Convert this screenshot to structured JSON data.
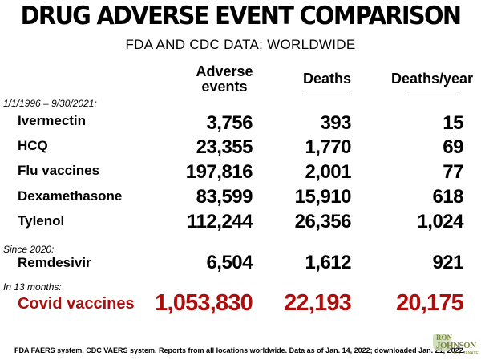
{
  "title": "DRUG ADVERSE EVENT COMPARISON",
  "subtitle": "FDA AND CDC DATA: WORLDWIDE",
  "columns": {
    "adverse_line1": "Adverse",
    "adverse_line2": "events",
    "deaths": "Deaths",
    "deaths_per_year": "Deaths/year"
  },
  "sections": {
    "period1": "1/1/1996 – 9/30/2021:",
    "period2": "Since 2020:",
    "period3": "In 13 months:"
  },
  "rows": [
    {
      "label": "Ivermectin",
      "adverse": "3,756",
      "deaths": "393",
      "per_year": "15"
    },
    {
      "label": "HCQ",
      "adverse": "23,355",
      "deaths": "1,770",
      "per_year": "69"
    },
    {
      "label": "Flu vaccines",
      "adverse": "197,816",
      "deaths": "2,001",
      "per_year": "77"
    },
    {
      "label": "Dexamethasone",
      "adverse": "83,599",
      "deaths": "15,910",
      "per_year": "618"
    },
    {
      "label": "Tylenol",
      "adverse": "112,244",
      "deaths": "26,356",
      "per_year": "1,024"
    },
    {
      "label": "Remdesivir",
      "adverse": "6,504",
      "deaths": "1,612",
      "per_year": "921"
    },
    {
      "label": "Covid vaccines",
      "adverse": "1,053,830",
      "deaths": "22,193",
      "per_year": "20,175"
    }
  ],
  "footer": "FDA FAERS system, CDC VAERS system. Reports from all locations worldwide. Data as of Jan. 14, 2022; downloaded Jan. 21, 2022.",
  "logo": {
    "line1": "RON",
    "line2": "JOHNSON",
    "line3": "U.S. SENATE"
  },
  "colors": {
    "highlight": "#b10c0c",
    "text": "#000000",
    "logo": "#7a8a3a"
  }
}
